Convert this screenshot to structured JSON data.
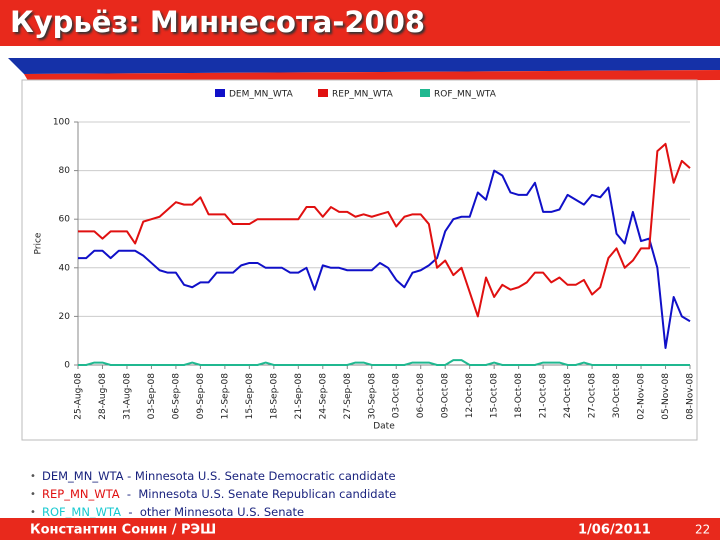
{
  "slide": {
    "title": "Курьёз: Миннесота-2008",
    "bullets": [
      {
        "code": "DEM_MN_WTA",
        "text": " - Minnesota U.S. Senate Democratic candidate",
        "color": "#1a237e"
      },
      {
        "code": "REP_MN_WTA",
        "text": "  -  Minnesota U.S. Senate Republican candidate",
        "color": "#e01010"
      },
      {
        "code": "ROF_MN_WTA",
        "text": "  -  other Minnesota U.S. Senate",
        "color": "#19c9d0"
      }
    ],
    "footer": {
      "author": "Константин Сонин / РЭШ",
      "date": "1/06/2011",
      "page": "22"
    }
  },
  "chart_data": {
    "type": "line",
    "xlabel": "Date",
    "ylabel": "Price",
    "x": [
      "2008-08-25",
      "2008-08-26",
      "2008-08-27",
      "2008-08-28",
      "2008-08-29",
      "2008-08-30",
      "2008-08-31",
      "2008-09-01",
      "2008-09-02",
      "2008-09-03",
      "2008-09-04",
      "2008-09-05",
      "2008-09-06",
      "2008-09-07",
      "2008-09-08",
      "2008-09-09",
      "2008-09-10",
      "2008-09-11",
      "2008-09-12",
      "2008-09-13",
      "2008-09-14",
      "2008-09-15",
      "2008-09-16",
      "2008-09-17",
      "2008-09-18",
      "2008-09-19",
      "2008-09-20",
      "2008-09-21",
      "2008-09-22",
      "2008-09-23",
      "2008-09-24",
      "2008-09-25",
      "2008-09-26",
      "2008-09-27",
      "2008-09-28",
      "2008-09-29",
      "2008-09-30",
      "2008-10-01",
      "2008-10-02",
      "2008-10-03",
      "2008-10-04",
      "2008-10-05",
      "2008-10-06",
      "2008-10-07",
      "2008-10-08",
      "2008-10-09",
      "2008-10-10",
      "2008-10-11",
      "2008-10-12",
      "2008-10-13",
      "2008-10-14",
      "2008-10-15",
      "2008-10-16",
      "2008-10-17",
      "2008-10-18",
      "2008-10-19",
      "2008-10-20",
      "2008-10-21",
      "2008-10-22",
      "2008-10-23",
      "2008-10-24",
      "2008-10-25",
      "2008-10-26",
      "2008-10-27",
      "2008-10-28",
      "2008-10-29",
      "2008-10-30",
      "2008-10-31",
      "2008-11-01",
      "2008-11-02",
      "2008-11-03",
      "2008-11-04",
      "2008-11-05",
      "2008-11-06",
      "2008-11-07",
      "2008-11-08"
    ],
    "series": [
      {
        "name": "DEM_MN_WTA",
        "color": "#1010c8",
        "values": [
          44,
          44,
          47,
          47,
          44,
          47,
          47,
          47,
          45,
          42,
          39,
          38,
          38,
          33,
          32,
          34,
          34,
          38,
          38,
          38,
          41,
          42,
          42,
          40,
          40,
          40,
          38,
          38,
          40,
          31,
          41,
          40,
          40,
          39,
          39,
          39,
          39,
          42,
          40,
          35,
          32,
          38,
          39,
          41,
          44,
          55,
          60,
          61,
          61,
          71,
          68,
          80,
          78,
          71,
          70,
          70,
          75,
          63,
          63,
          64,
          70,
          68,
          66,
          70,
          69,
          73,
          54,
          50,
          63,
          51,
          52,
          40,
          7,
          28,
          20,
          18
        ]
      },
      {
        "name": "REP_MN_WTA",
        "color": "#e01010",
        "values": [
          55,
          55,
          55,
          52,
          55,
          55,
          55,
          50,
          59,
          60,
          61,
          64,
          67,
          66,
          66,
          69,
          62,
          62,
          62,
          58,
          58,
          58,
          60,
          60,
          60,
          60,
          60,
          60,
          65,
          65,
          61,
          65,
          63,
          63,
          61,
          62,
          61,
          62,
          63,
          57,
          61,
          62,
          62,
          58,
          40,
          43,
          37,
          40,
          30,
          20,
          36,
          28,
          33,
          31,
          32,
          34,
          38,
          38,
          34,
          36,
          33,
          33,
          35,
          29,
          32,
          44,
          48,
          40,
          43,
          48,
          48,
          88,
          91,
          75,
          84,
          81
        ]
      },
      {
        "name": "ROF_MN_WTA",
        "color": "#20b890",
        "values": [
          0,
          0,
          1,
          1,
          0,
          0,
          0,
          0,
          0,
          0,
          0,
          0,
          0,
          0,
          1,
          0,
          0,
          0,
          0,
          0,
          0,
          0,
          0,
          1,
          0,
          0,
          0,
          0,
          0,
          0,
          0,
          0,
          0,
          0,
          1,
          1,
          0,
          0,
          0,
          0,
          0,
          1,
          1,
          1,
          0,
          0,
          2,
          2,
          0,
          0,
          0,
          1,
          0,
          0,
          0,
          0,
          0,
          1,
          1,
          1,
          0,
          0,
          1,
          0,
          0,
          0,
          0,
          0,
          0,
          0,
          0,
          0,
          0,
          0,
          0,
          0
        ]
      }
    ],
    "xlim": [
      "2008-08-25",
      "2008-11-08"
    ],
    "xticks": [
      {
        "value": "2008-08-25",
        "label": "25-Aug-08"
      },
      {
        "value": "2008-08-28",
        "label": "28-Aug-08"
      },
      {
        "value": "2008-08-31",
        "label": "31-Aug-08"
      },
      {
        "value": "2008-09-03",
        "label": "03-Sep-08"
      },
      {
        "value": "2008-09-06",
        "label": "06-Sep-08"
      },
      {
        "value": "2008-09-09",
        "label": "09-Sep-08"
      },
      {
        "value": "2008-09-12",
        "label": "12-Sep-08"
      },
      {
        "value": "2008-09-15",
        "label": "15-Sep-08"
      },
      {
        "value": "2008-09-18",
        "label": "18-Sep-08"
      },
      {
        "value": "2008-09-21",
        "label": "21-Sep-08"
      },
      {
        "value": "2008-09-24",
        "label": "24-Sep-08"
      },
      {
        "value": "2008-09-27",
        "label": "27-Sep-08"
      },
      {
        "value": "2008-09-30",
        "label": "30-Sep-08"
      },
      {
        "value": "2008-10-03",
        "label": "03-Oct-08"
      },
      {
        "value": "2008-10-06",
        "label": "06-Oct-08"
      },
      {
        "value": "2008-10-09",
        "label": "09-Oct-08"
      },
      {
        "value": "2008-10-12",
        "label": "12-Oct-08"
      },
      {
        "value": "2008-10-15",
        "label": "15-Oct-08"
      },
      {
        "value": "2008-10-18",
        "label": "18-Oct-08"
      },
      {
        "value": "2008-10-21",
        "label": "21-Oct-08"
      },
      {
        "value": "2008-10-24",
        "label": "24-Oct-08"
      },
      {
        "value": "2008-10-27",
        "label": "27-Oct-08"
      },
      {
        "value": "2008-10-30",
        "label": "30-Oct-08"
      },
      {
        "value": "2008-11-02",
        "label": "02-Nov-08"
      },
      {
        "value": "2008-11-05",
        "label": "05-Nov-08"
      },
      {
        "value": "2008-11-08",
        "label": "08-Nov-08"
      }
    ],
    "ylim": [
      0,
      100
    ],
    "yticks": [
      0,
      20,
      40,
      60,
      80,
      100
    ],
    "grid": true
  }
}
